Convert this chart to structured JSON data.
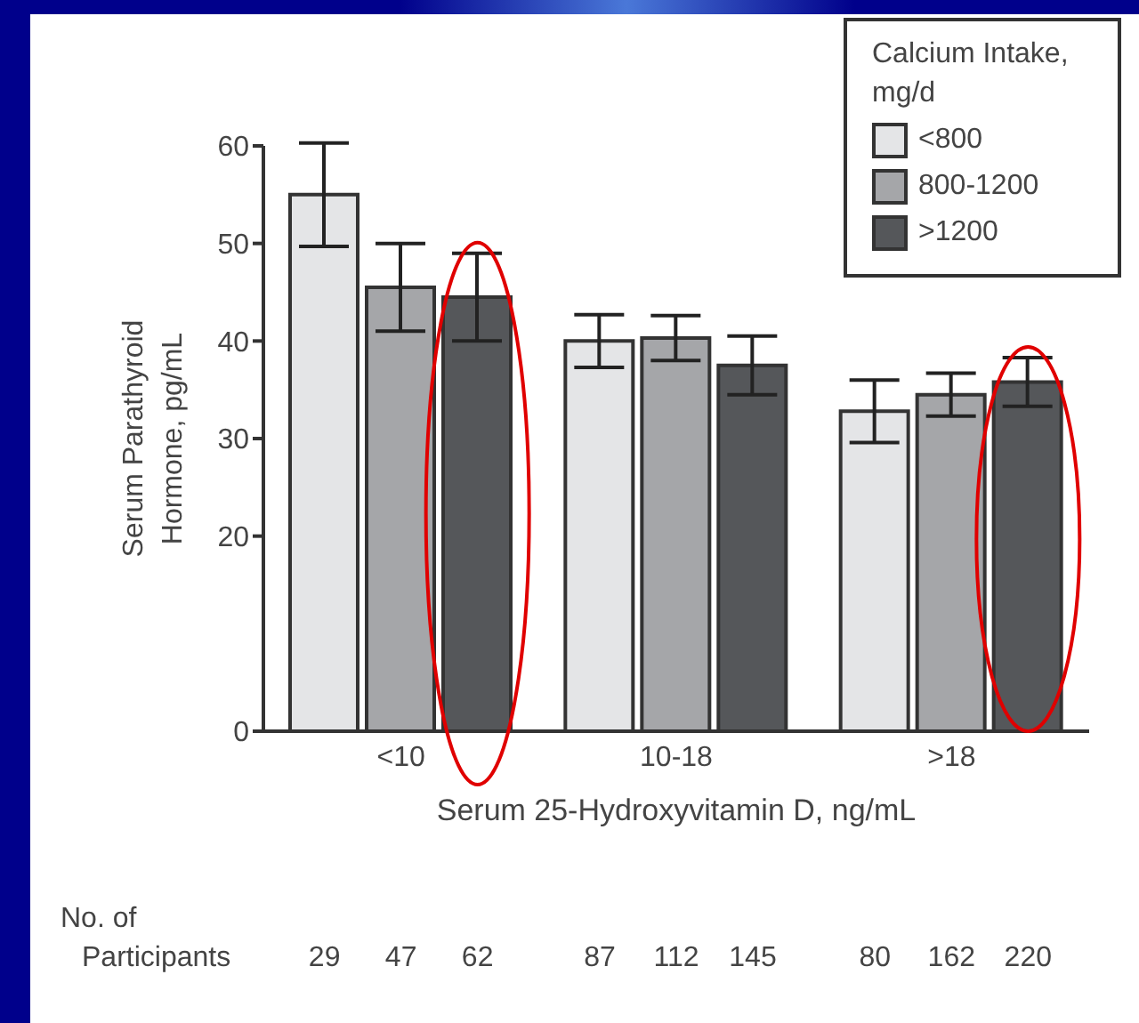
{
  "chart_data": {
    "type": "bar",
    "xlabel": "Serum 25-Hydroxyvitamin D, ng/mL",
    "ylabel": "Serum Parathyroid Hormone, pg/mL",
    "legend_title": "Calcium Intake, mg/d",
    "categories": [
      "<10",
      "10-18",
      ">18"
    ],
    "series": [
      {
        "name": "<800",
        "color": "#e4e5e7",
        "values": [
          55,
          40,
          32.8
        ],
        "errors": [
          5.3,
          2.7,
          3.2
        ]
      },
      {
        "name": "800-1200",
        "color": "#a5a6a9",
        "values": [
          45.5,
          40.3,
          34.5
        ],
        "errors": [
          4.5,
          2.3,
          2.2
        ]
      },
      {
        "name": ">1200",
        "color": "#55575a",
        "values": [
          44.5,
          37.5,
          35.8
        ],
        "errors": [
          4.5,
          3,
          2.5
        ]
      }
    ],
    "ylim": [
      0,
      60
    ],
    "yticks": [
      0,
      20,
      30,
      40,
      50,
      60
    ],
    "legend": "top right",
    "annotations": [
      "No. of Participants",
      "29",
      "47",
      "62",
      "87",
      "112",
      "145",
      "80",
      "162",
      "220"
    ]
  }
}
